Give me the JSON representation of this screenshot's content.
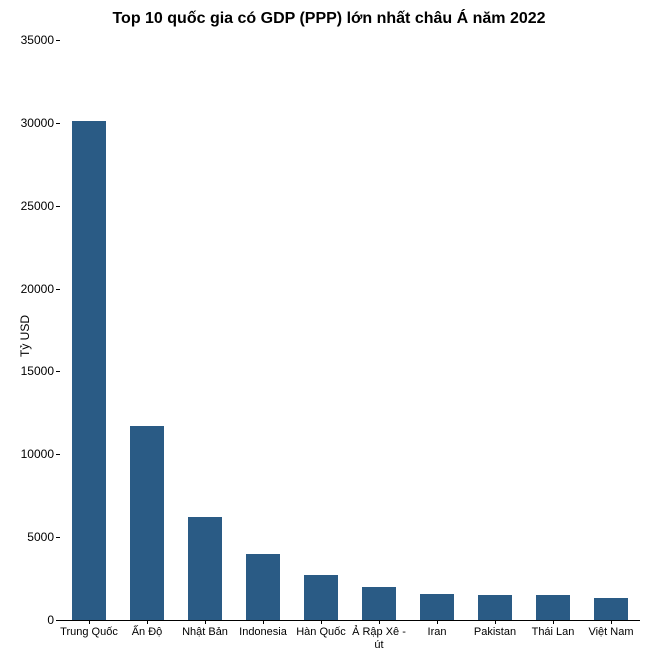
{
  "chart": {
    "type": "bar",
    "title": "Top 10 quốc gia có GDP (PPP) lớn nhất châu Á năm 2022",
    "title_fontsize": 16,
    "ylabel": "Tỷ USD",
    "label_fontsize": 12,
    "categories": [
      "Trung Quốc",
      "Ấn Độ",
      "Nhật Bản",
      "Indonesia",
      "Hàn Quốc",
      "Ả Rập Xê - út",
      "Iran",
      "Pakistan",
      "Thái Lan",
      "Việt Nam"
    ],
    "values": [
      30100,
      11700,
      6200,
      4000,
      2700,
      2000,
      1600,
      1500,
      1500,
      1300
    ],
    "bar_color": "#2a5b85",
    "background_color": "#ffffff",
    "ylim": [
      0,
      35000
    ],
    "ytick_step": 5000,
    "yticks": [
      0,
      5000,
      10000,
      15000,
      20000,
      25000,
      30000,
      35000
    ],
    "bar_width": 0.6,
    "axis_color": "#000000",
    "title_color": "#000000",
    "tick_fontsize": 12,
    "xtick_fontsize": 11
  }
}
